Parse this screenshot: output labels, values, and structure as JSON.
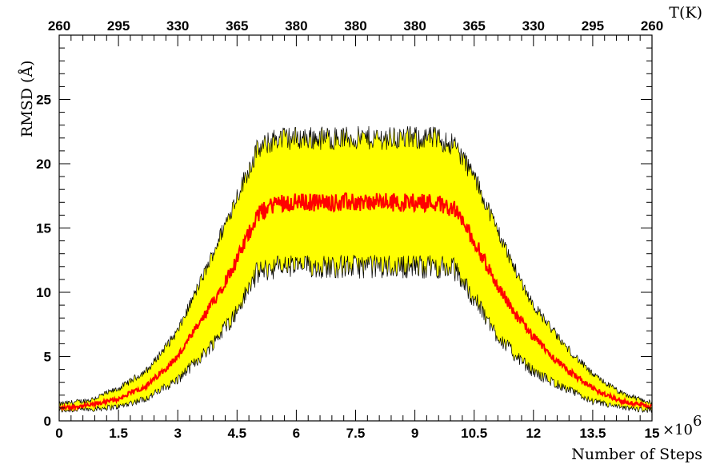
{
  "chart_data": {
    "type": "line",
    "xlabel": "Number of Steps",
    "ylabel": "RMSD (Å)",
    "x_multiplier": "×10",
    "x_multiplier_exp": "6",
    "top_axis_label": "T(K)",
    "xlim": [
      0,
      15
    ],
    "ylim": [
      0,
      30
    ],
    "x_ticks": [
      "0",
      "1.5",
      "3",
      "4.5",
      "6",
      "7.5",
      "9",
      "10.5",
      "12",
      "13.5",
      "15"
    ],
    "y_ticks": [
      "0",
      "5",
      "10",
      "15",
      "20",
      "25"
    ],
    "top_ticks": [
      "260",
      "295",
      "330",
      "365",
      "380",
      "380",
      "380",
      "365",
      "330",
      "295",
      "260"
    ],
    "colors": {
      "band": "#ffff00",
      "band_edge": "#000000",
      "mean_line": "#ff0000"
    },
    "series": [
      {
        "role": "mean",
        "x": [
          0,
          0.75,
          1.5,
          2.25,
          3,
          3.75,
          4.5,
          5,
          5.5,
          6,
          7.5,
          9,
          9.5,
          10,
          10.5,
          11,
          11.5,
          12,
          12.75,
          13.5,
          14.25,
          15
        ],
        "values": [
          1.0,
          1.2,
          1.7,
          2.8,
          5.0,
          8.5,
          12.5,
          16.0,
          17.0,
          17.0,
          17.0,
          17.0,
          17.0,
          16.5,
          14.0,
          11.0,
          8.5,
          6.5,
          4.2,
          2.5,
          1.5,
          1.1
        ]
      },
      {
        "role": "upper",
        "x": [
          0,
          0.75,
          1.5,
          2.25,
          3,
          3.75,
          4.5,
          5,
          5.5,
          6,
          7.5,
          9,
          9.5,
          10,
          10.5,
          11,
          11.5,
          12,
          12.75,
          13.5,
          14.25,
          15
        ],
        "values": [
          1.3,
          1.6,
          2.5,
          4.0,
          7.0,
          12.0,
          17.5,
          21.0,
          22.0,
          22.0,
          22.0,
          22.0,
          22.0,
          21.5,
          19.0,
          15.5,
          12.0,
          9.0,
          6.0,
          3.6,
          2.1,
          1.4
        ]
      },
      {
        "role": "lower",
        "x": [
          0,
          0.75,
          1.5,
          2.25,
          3,
          3.75,
          4.5,
          5,
          5.5,
          6,
          7.5,
          9,
          9.5,
          10,
          10.5,
          11,
          11.5,
          12,
          12.75,
          13.5,
          14.25,
          15
        ],
        "values": [
          0.8,
          0.9,
          1.1,
          1.8,
          3.2,
          5.5,
          8.5,
          11.5,
          12.0,
          12.0,
          12.0,
          12.0,
          12.0,
          11.8,
          9.5,
          7.0,
          5.2,
          3.8,
          2.6,
          1.5,
          1.0,
          0.8
        ]
      }
    ]
  }
}
